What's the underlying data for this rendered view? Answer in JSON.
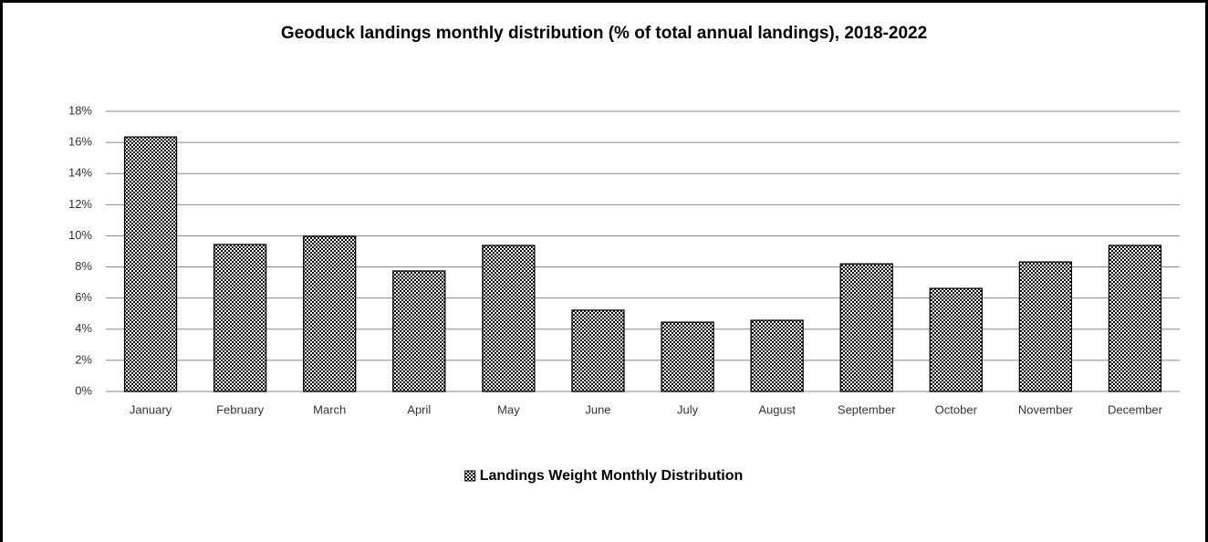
{
  "chart_data": {
    "type": "bar",
    "title": "Geoduck landings monthly distribution (% of total annual landings), 2018-2022",
    "categories": [
      "January",
      "February",
      "March",
      "April",
      "May",
      "June",
      "July",
      "August",
      "September",
      "October",
      "November",
      "December"
    ],
    "series": [
      {
        "name": "Landings Weight Monthly Distribution",
        "color": "#000000",
        "values": [
          16.35,
          9.44,
          9.97,
          7.74,
          9.38,
          5.22,
          4.45,
          4.57,
          8.2,
          6.62,
          8.32,
          9.38
        ]
      }
    ],
    "ylim": [
      0,
      18
    ],
    "yticks": [
      {
        "value": 0,
        "label": "0%"
      },
      {
        "value": 2,
        "label": "2%"
      },
      {
        "value": 4,
        "label": "4%"
      },
      {
        "value": 6,
        "label": "6%"
      },
      {
        "value": 8,
        "label": "8%"
      },
      {
        "value": 10,
        "label": "10%"
      },
      {
        "value": 12,
        "label": "12%"
      },
      {
        "value": 14,
        "label": "14%"
      },
      {
        "value": 16,
        "label": "16%"
      },
      {
        "value": 18,
        "label": "18%"
      }
    ],
    "grid": true,
    "legend": "bottom"
  }
}
